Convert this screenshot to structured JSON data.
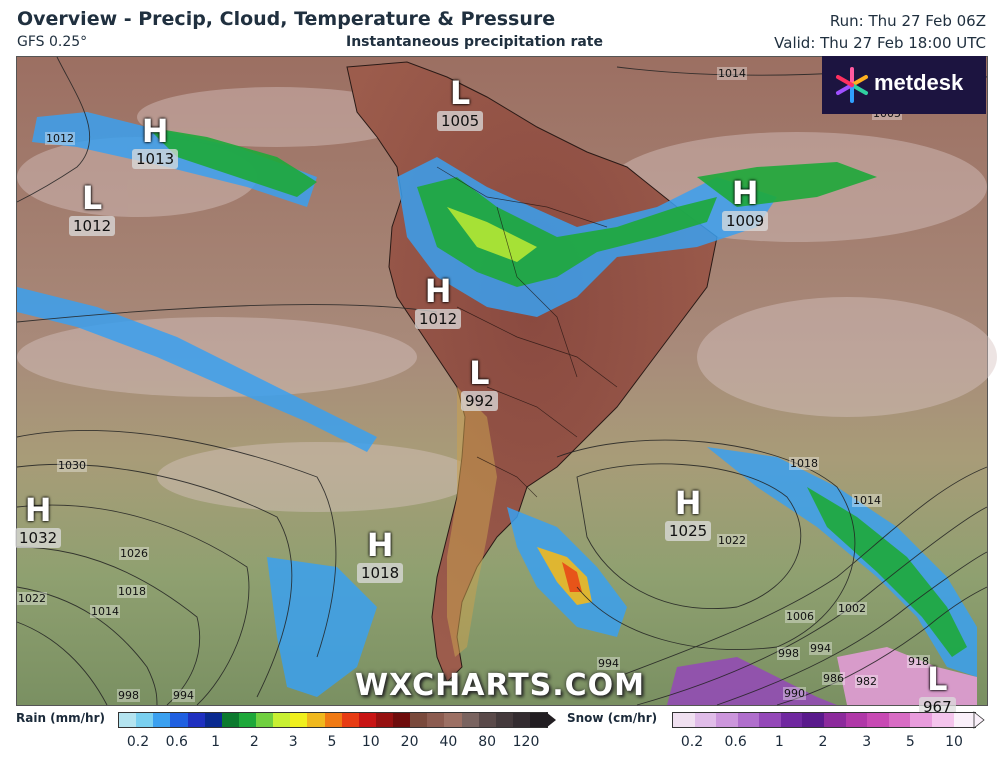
{
  "header": {
    "title": "Overview - Precip, Cloud, Temperature & Pressure",
    "model": "GFS 0.25°",
    "subtitle": "Instantaneous precipitation rate",
    "run": "Run: Thu 27 Feb 06Z",
    "valid": "Valid: Thu 27 Feb 18:00 UTC"
  },
  "logo": {
    "text": "metdesk",
    "icon": "metdesk-asterisk-icon"
  },
  "watermark": "WXCHARTS.COM",
  "pressure_centers": [
    {
      "type": "L",
      "value": "1005"
    },
    {
      "type": "H",
      "value": "1013"
    },
    {
      "type": "L",
      "value": "1012"
    },
    {
      "type": "H",
      "value": "1009"
    },
    {
      "type": "H",
      "value": "1012"
    },
    {
      "type": "L",
      "value": "992"
    },
    {
      "type": "H",
      "value": "1032"
    },
    {
      "type": "H",
      "value": "1018"
    },
    {
      "type": "H",
      "value": "1025"
    },
    {
      "type": "L",
      "value": "967"
    }
  ],
  "isobar_labels": [
    "1014",
    "1012",
    "1030",
    "1026",
    "1022",
    "1018",
    "1014",
    "998",
    "994",
    "1018",
    "1014",
    "1022",
    "1006",
    "1002",
    "998",
    "994",
    "990",
    "986",
    "982",
    "994",
    "918",
    "1005"
  ],
  "legend": {
    "rain": {
      "title": "Rain (mm/hr)",
      "ticks": [
        "0.2",
        "0.6",
        "1",
        "2",
        "3",
        "5",
        "10",
        "20",
        "40",
        "80",
        "120"
      ],
      "colors": [
        "#b4e4f0",
        "#7ad0f0",
        "#3aa0f0",
        "#1f5fe0",
        "#1f30c0",
        "#0a2a90",
        "#0c7a2e",
        "#1ea83a",
        "#70d040",
        "#c8f032",
        "#f0f01e",
        "#f0b81e",
        "#f07a14",
        "#e83c14",
        "#c81414",
        "#961010",
        "#6e0c0c",
        "#7a4a3c",
        "#8c5c50",
        "#9c7064",
        "#7a6460",
        "#5a4a4a",
        "#443a3c",
        "#332c30",
        "#221e22"
      ]
    },
    "snow": {
      "title": "Snow (cm/hr)",
      "ticks": [
        "0.2",
        "0.6",
        "1",
        "2",
        "3",
        "5",
        "10"
      ],
      "colors": [
        "#f0e0f0",
        "#e0bce8",
        "#cc96dc",
        "#b06ecc",
        "#9448b8",
        "#7028a0",
        "#5a1a8c",
        "#8c2a9c",
        "#b038a8",
        "#c84ab4",
        "#d86cc4",
        "#e89cdc",
        "#f4c4ec",
        "#faf0fa"
      ]
    }
  }
}
